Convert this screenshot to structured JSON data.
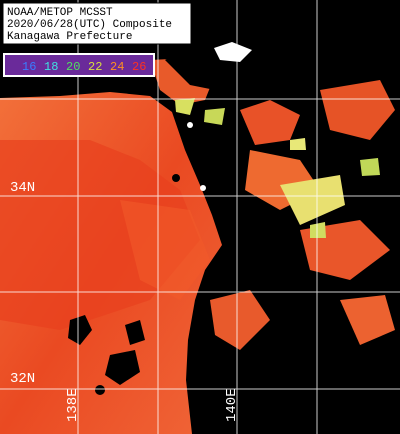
{
  "header": {
    "lines": [
      "NOAA/METOP MCSST",
      "2020/06/28(UTC) Composite",
      "Kanagawa Prefecture"
    ]
  },
  "colorbar": {
    "labels": [
      16,
      18,
      20,
      22,
      24,
      26
    ]
  },
  "grid": {
    "lat_labels": [
      "34N",
      "32N"
    ],
    "lon_labels": [
      "138E",
      "140E"
    ]
  }
}
